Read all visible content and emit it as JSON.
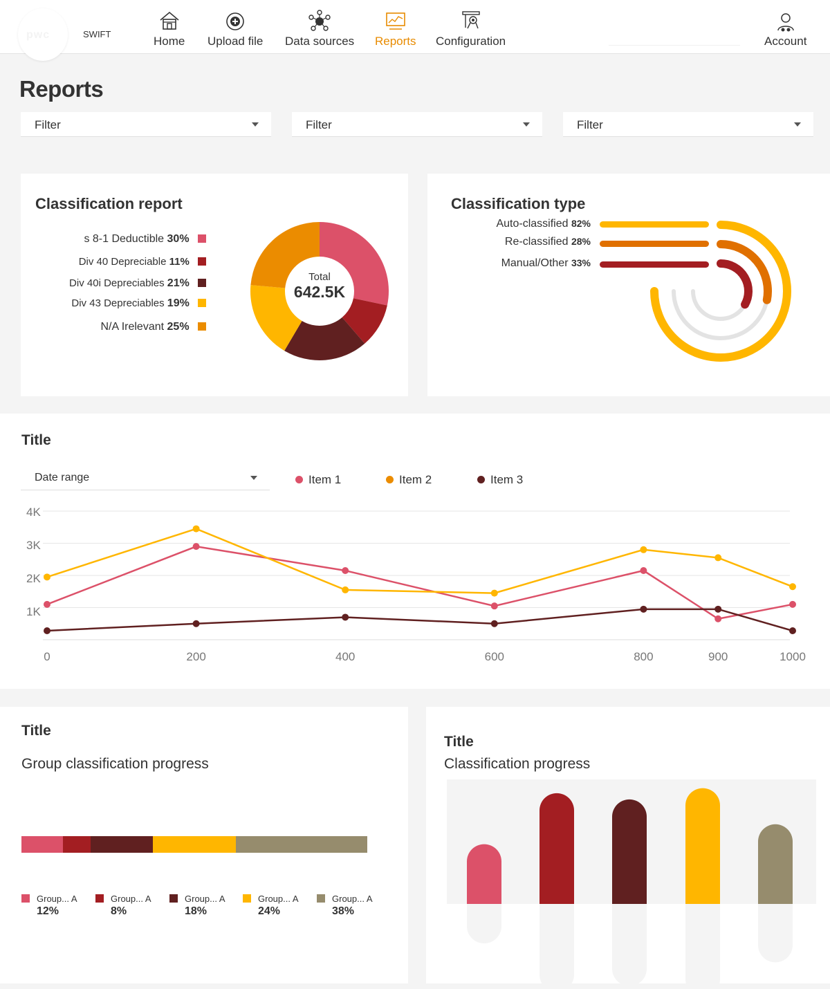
{
  "app": {
    "brand": "SWIFT",
    "logo_text": "pwc"
  },
  "nav": {
    "items": [
      {
        "label": "Home",
        "icon": "home-icon"
      },
      {
        "label": "Upload file",
        "icon": "upload-icon"
      },
      {
        "label": "Data sources",
        "icon": "data-sources-icon"
      },
      {
        "label": "Reports",
        "icon": "reports-icon",
        "active": true
      },
      {
        "label": "Configuration",
        "icon": "configuration-icon"
      }
    ],
    "account_label": "Account",
    "active_color": "#e88b00"
  },
  "page": {
    "title": "Reports"
  },
  "filters": [
    {
      "label": "Filter"
    },
    {
      "label": "Filter"
    },
    {
      "label": "Filter"
    }
  ],
  "classification_report": {
    "title": "Classification report",
    "total_label": "Total",
    "total_value": "642.5K",
    "items": [
      {
        "label": "s 8-1 Deductible",
        "pct": "30%",
        "value": 30,
        "color": "#dc5169"
      },
      {
        "label": "Div 40 Depreciable",
        "pct": "11%",
        "value": 11,
        "color": "#a31e22"
      },
      {
        "label": "Div 40i Depreciables",
        "pct": "21%",
        "value": 21,
        "color": "#602020"
      },
      {
        "label": "Div 43  Depreciables",
        "pct": "19%",
        "value": 19,
        "color": "#ffb600"
      },
      {
        "label": "N/A Irelevant",
        "pct": "25%",
        "value": 25,
        "color": "#eb8c00"
      }
    ]
  },
  "classification_type": {
    "title": "Classification  type",
    "items": [
      {
        "label": "Auto-classified",
        "pct": "82%",
        "value": 82,
        "color": "#ffb600"
      },
      {
        "label": "Re-classified",
        "pct": "28%",
        "value": 28,
        "color": "#e07000"
      },
      {
        "label": "Manual/Other",
        "pct": "33%",
        "value": 33,
        "color": "#a31e22"
      }
    ]
  },
  "line_section": {
    "title": "Title",
    "date_range_label": "Date range"
  },
  "chart_data": [
    {
      "type": "line",
      "x": [
        0,
        200,
        400,
        600,
        800,
        900,
        1000
      ],
      "x_tick_labels": [
        "0",
        "200",
        "400",
        "600",
        "800",
        "900",
        "1000"
      ],
      "y_tick_labels": [
        "4K",
        "3K",
        "2K",
        "1K"
      ],
      "ylim": [
        0,
        4000
      ],
      "legend_placement": "top",
      "grid": true,
      "series": [
        {
          "name": "Item 1",
          "color": "#dc5169",
          "values": [
            1100,
            2900,
            2150,
            1050,
            2150,
            650,
            1100
          ]
        },
        {
          "name": "Item 2",
          "color": "#ffb600",
          "legend_color": "#eb8c00",
          "values": [
            1950,
            3450,
            1550,
            1450,
            2800,
            2550,
            1650
          ]
        },
        {
          "name": "Item 3",
          "color": "#602020",
          "values": [
            280,
            500,
            700,
            500,
            950,
            950,
            280
          ]
        }
      ]
    },
    {
      "type": "bar",
      "orientation": "stacked-horizontal",
      "title": "Group classification progress",
      "categories": [
        "Group... A",
        "Group... A",
        "Group... A",
        "Group... A",
        "Group... A"
      ],
      "values": [
        12,
        8,
        18,
        24,
        38
      ],
      "value_labels": [
        "12%",
        "8%",
        "18%",
        "24%",
        "38%"
      ],
      "colors": [
        "#dc5169",
        "#a31e22",
        "#602020",
        "#ffb600",
        "#968c6d"
      ]
    },
    {
      "type": "bar",
      "title": "Classification progress",
      "values": [
        48,
        89,
        84,
        93,
        64
      ],
      "ylim": [
        0,
        100
      ],
      "colors": [
        "#dc5169",
        "#a31e22",
        "#602020",
        "#ffb600",
        "#968c6d"
      ]
    }
  ],
  "group_progress": {
    "section_title": "Title",
    "subtitle": "Group classification progress"
  },
  "class_progress": {
    "section_title": "Title",
    "subtitle": "Classification progress"
  }
}
